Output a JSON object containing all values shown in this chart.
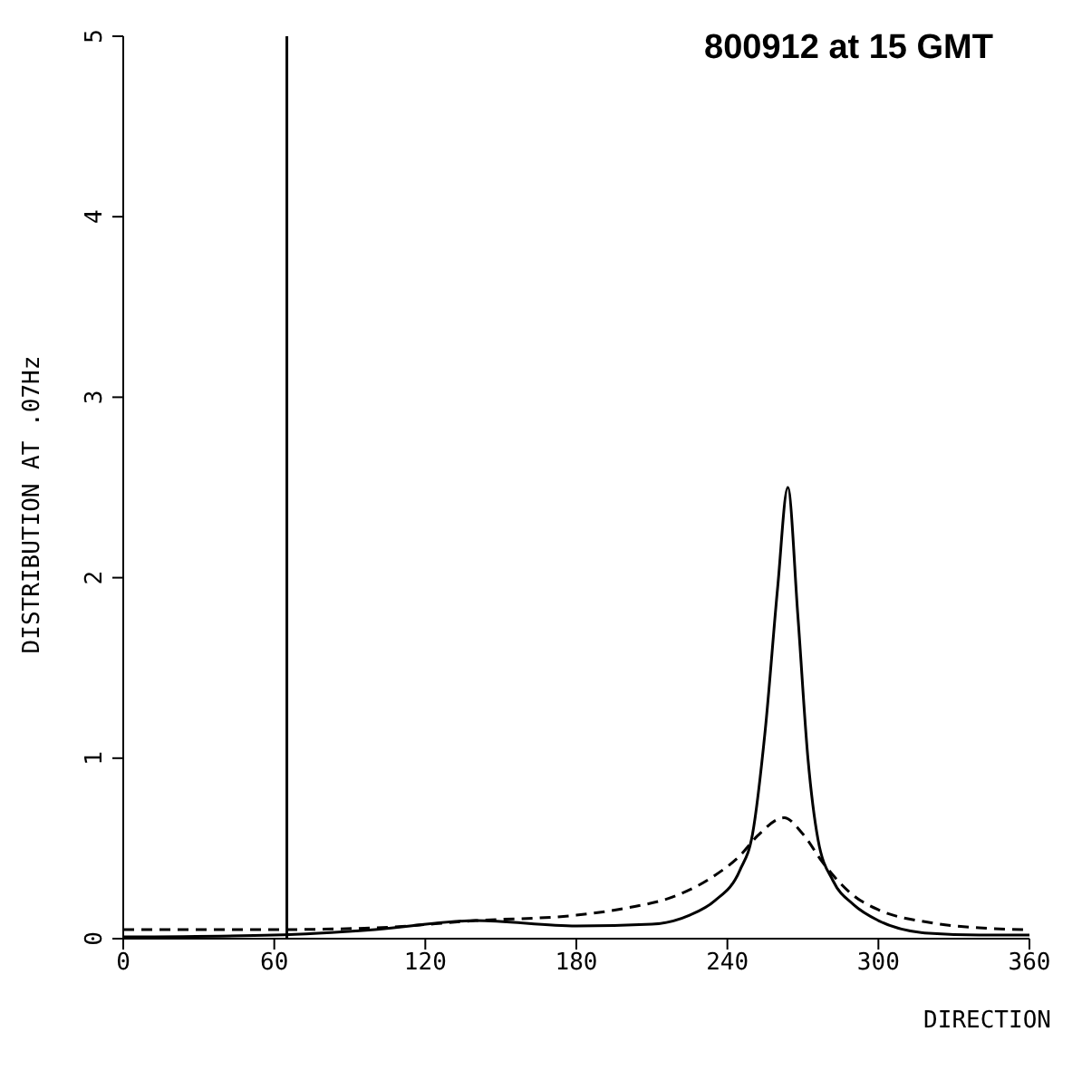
{
  "chart_data": {
    "type": "line",
    "title": "800912 at 15 GMT",
    "xlabel": "DIRECTION",
    "ylabel": "DISTRIBUTION AT .07Hz",
    "xlim": [
      0,
      360
    ],
    "xticks": [
      0,
      60,
      120,
      180,
      240,
      300,
      360
    ],
    "ylim": [
      0,
      5
    ],
    "yticks": [
      0,
      1,
      2,
      3,
      4,
      5
    ],
    "marker": "none",
    "series": [
      {
        "color": "#000000",
        "line_style": "solid",
        "x": [
          0,
          60,
          100,
          140,
          180,
          210,
          225,
          235,
          245,
          250,
          255,
          260,
          264,
          268,
          272,
          276,
          282,
          290,
          300,
          320,
          340,
          360
        ],
        "values": [
          0.01,
          0.02,
          0.05,
          0.1,
          0.07,
          0.08,
          0.13,
          0.21,
          0.38,
          0.58,
          1.15,
          1.95,
          2.5,
          1.79,
          1.0,
          0.55,
          0.32,
          0.19,
          0.1,
          0.03,
          0.02,
          0.02
        ]
      },
      {
        "color": "#000000",
        "line_style": "dashed",
        "x": [
          0,
          60,
          100,
          140,
          180,
          200,
          220,
          235,
          245,
          252,
          262.5,
          270,
          278,
          290,
          300,
          320,
          340,
          360
        ],
        "values": [
          0.05,
          0.05,
          0.06,
          0.1,
          0.13,
          0.17,
          0.24,
          0.35,
          0.46,
          0.57,
          0.67,
          0.58,
          0.42,
          0.24,
          0.16,
          0.09,
          0.06,
          0.05
        ]
      }
    ],
    "ref_lines": [
      {
        "axis": "x",
        "value": 65,
        "color": "#000000"
      }
    ]
  }
}
